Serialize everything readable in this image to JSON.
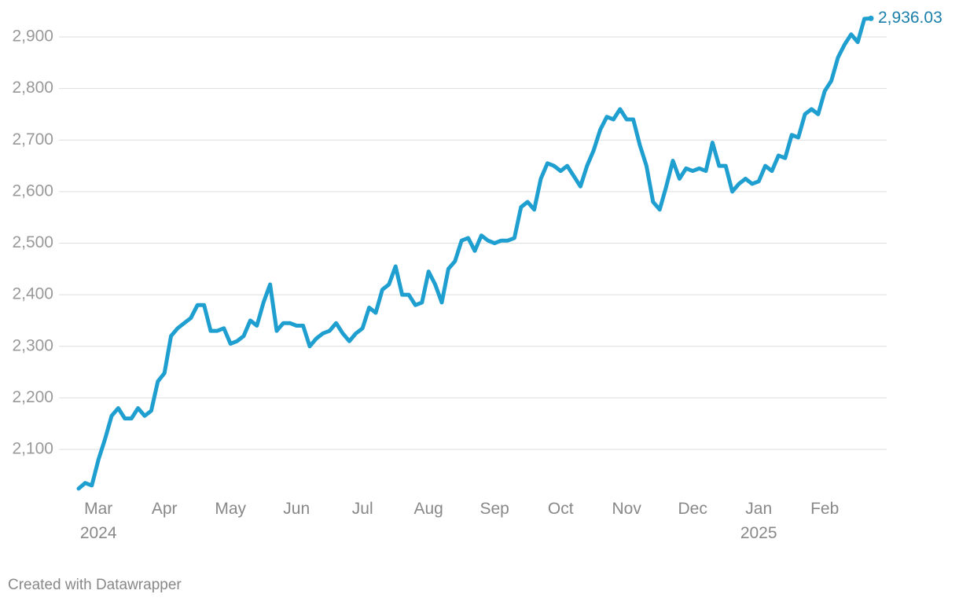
{
  "chart_data": {
    "type": "line",
    "categories": [
      null,
      null,
      null,
      "Mar\n2024",
      null,
      null,
      null,
      null,
      null,
      null,
      null,
      null,
      null,
      "Apr",
      null,
      null,
      null,
      null,
      null,
      null,
      null,
      null,
      null,
      "May",
      null,
      null,
      null,
      null,
      null,
      null,
      null,
      null,
      null,
      "Jun",
      null,
      null,
      null,
      null,
      null,
      null,
      null,
      null,
      null,
      "Jul",
      null,
      null,
      null,
      null,
      null,
      null,
      null,
      null,
      null,
      "Aug",
      null,
      null,
      null,
      null,
      null,
      null,
      null,
      null,
      null,
      "Sep",
      null,
      null,
      null,
      null,
      null,
      null,
      null,
      null,
      null,
      "Oct",
      null,
      null,
      null,
      null,
      null,
      null,
      null,
      null,
      null,
      "Nov",
      null,
      null,
      null,
      null,
      null,
      null,
      null,
      null,
      null,
      "Dec",
      null,
      null,
      null,
      null,
      null,
      null,
      null,
      null,
      null,
      "Jan\n2025",
      null,
      null,
      null,
      null,
      null,
      null,
      null,
      null,
      null,
      "Feb",
      null,
      null,
      null,
      null,
      null,
      null,
      null
    ],
    "values": [
      2024,
      2035,
      2030,
      2080,
      2120,
      2165,
      2180,
      2160,
      2160,
      2180,
      2165,
      2175,
      2232,
      2248,
      2320,
      2335,
      2345,
      2355,
      2380,
      2380,
      2330,
      2330,
      2335,
      2305,
      2310,
      2320,
      2350,
      2340,
      2385,
      2420,
      2330,
      2345,
      2345,
      2340,
      2340,
      2300,
      2315,
      2325,
      2330,
      2345,
      2325,
      2310,
      2325,
      2335,
      2375,
      2365,
      2410,
      2420,
      2455,
      2400,
      2400,
      2380,
      2385,
      2445,
      2420,
      2385,
      2450,
      2465,
      2505,
      2510,
      2485,
      2515,
      2505,
      2500,
      2505,
      2505,
      2510,
      2570,
      2580,
      2565,
      2625,
      2655,
      2650,
      2640,
      2650,
      2630,
      2610,
      2650,
      2680,
      2720,
      2745,
      2740,
      2760,
      2740,
      2740,
      2690,
      2650,
      2580,
      2565,
      2610,
      2660,
      2625,
      2645,
      2640,
      2645,
      2640,
      2695,
      2650,
      2650,
      2600,
      2615,
      2625,
      2615,
      2620,
      2650,
      2640,
      2670,
      2665,
      2710,
      2705,
      2750,
      2760,
      2750,
      2795,
      2815,
      2860,
      2885,
      2905,
      2890,
      2935,
      2936.03
    ],
    "value_labels": [
      null,
      null,
      null,
      null,
      null,
      null,
      null,
      null,
      null,
      null,
      null,
      null,
      null,
      null,
      null,
      null,
      null,
      null,
      null,
      null,
      null,
      null,
      null,
      null,
      null,
      null,
      null,
      null,
      null,
      null,
      null,
      null,
      null,
      null,
      null,
      null,
      null,
      null,
      null,
      null,
      null,
      null,
      null,
      null,
      null,
      null,
      null,
      null,
      null,
      null,
      null,
      null,
      null,
      null,
      null,
      null,
      null,
      null,
      null,
      null,
      null,
      null,
      null,
      null,
      null,
      null,
      null,
      null,
      null,
      null,
      null,
      null,
      null,
      null,
      null,
      null,
      null,
      null,
      null,
      null,
      null,
      null,
      null,
      null,
      null,
      null,
      null,
      null,
      null,
      null,
      null,
      null,
      null,
      null,
      null,
      null,
      null,
      null,
      null,
      null,
      null,
      null,
      null,
      null,
      null,
      null,
      null,
      null,
      null,
      null,
      null,
      null,
      null,
      null,
      null,
      null,
      null,
      null,
      null,
      null,
      "2,936.03"
    ],
    "color": "#1f9fd0",
    "label_color": "#1a7fa8",
    "ylim": [
      2020,
      2940
    ],
    "yticks": [
      {
        "value": 2100,
        "label": "2,100"
      },
      {
        "value": 2200,
        "label": "2,200"
      },
      {
        "value": 2300,
        "label": "2,300"
      },
      {
        "value": 2400,
        "label": "2,400"
      },
      {
        "value": 2500,
        "label": "2,500"
      },
      {
        "value": 2600,
        "label": "2,600"
      },
      {
        "value": 2700,
        "label": "2,700"
      },
      {
        "value": 2800,
        "label": "2,800"
      },
      {
        "value": 2900,
        "label": "2,900"
      }
    ],
    "grid": true,
    "credit": "Created with Datawrapper"
  }
}
